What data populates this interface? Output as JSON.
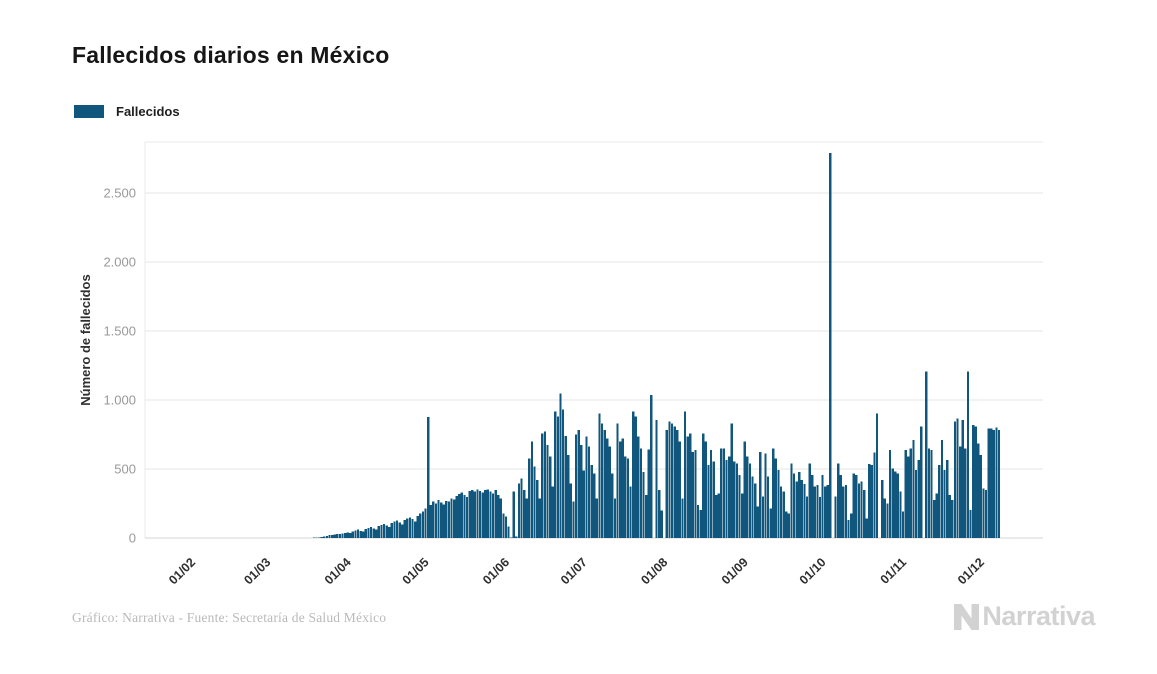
{
  "title": "Fallecidos diarios en México",
  "legend": {
    "label": "Fallecidos",
    "color": "#11577d"
  },
  "footer": {
    "credit": "Gráfico: Narrativa - Fuente: Secretaría de Salud México",
    "logo_text": "Narrativa"
  },
  "chart_data": {
    "type": "bar",
    "title": "Fallecidos diarios en México",
    "xlabel": "",
    "ylabel": "Número de fallecidos",
    "ylim": [
      0,
      2800
    ],
    "grid": true,
    "legend_position": "top-left",
    "bar_color": "#11577d",
    "axis_text_color": "#999999",
    "yticks": [
      {
        "label": "0",
        "value": 0
      },
      {
        "label": "500",
        "value": 500
      },
      {
        "label": "1.000",
        "value": 1000
      },
      {
        "label": "1.500",
        "value": 1500
      },
      {
        "label": "2.000",
        "value": 2000
      },
      {
        "label": "2.500",
        "value": 2500
      }
    ],
    "xticks": [
      {
        "label": "01/02",
        "day": 0
      },
      {
        "label": "01/03",
        "day": 29
      },
      {
        "label": "01/04",
        "day": 60
      },
      {
        "label": "01/05",
        "day": 90
      },
      {
        "label": "01/06",
        "day": 121
      },
      {
        "label": "01/07",
        "day": 151
      },
      {
        "label": "01/08",
        "day": 182
      },
      {
        "label": "01/09",
        "day": 213
      },
      {
        "label": "01/10",
        "day": 243
      },
      {
        "label": "01/11",
        "day": 274
      },
      {
        "label": "01/12",
        "day": 304
      }
    ],
    "series": [
      {
        "name": "Fallecidos",
        "first_point_day_offset": 47,
        "values": [
          2,
          3,
          5,
          8,
          12,
          16,
          20,
          22,
          25,
          28,
          30,
          33,
          36,
          40,
          36,
          48,
          54,
          60,
          52,
          46,
          66,
          72,
          78,
          70,
          62,
          86,
          94,
          102,
          92,
          80,
          110,
          118,
          126,
          112,
          98,
          132,
          140,
          150,
          136,
          120,
          160,
          176,
          193,
          215,
          877,
          239,
          263,
          251,
          275,
          258,
          243,
          269,
          263,
          287,
          278,
          305,
          318,
          330,
          312,
          296,
          341,
          348,
          336,
          353,
          341,
          330,
          348,
          353,
          336,
          324,
          348,
          312,
          287,
          179,
          155,
          82,
          4,
          336,
          10,
          396,
          432,
          348,
          287,
          577,
          698,
          517,
          420,
          287,
          758,
          770,
          674,
          589,
          372,
          915,
          879,
          1048,
          930,
          739,
          600,
          395,
          263,
          750,
          782,
          674,
          490,
          734,
          662,
          529,
          468,
          287,
          903,
          831,
          782,
          722,
          662,
          468,
          287,
          831,
          698,
          722,
          589,
          577,
          372,
          915,
          879,
          737,
          650,
          480,
          310,
          640,
          1036,
          0,
          855,
          348,
          200,
          0,
          782,
          843,
          831,
          807,
          782,
          698,
          287,
          915,
          734,
          758,
          625,
          638,
          239,
          203,
          758,
          698,
          529,
          638,
          553,
          312,
          324,
          650,
          650,
          565,
          589,
          831,
          553,
          541,
          456,
          324,
          698,
          589,
          541,
          444,
          396,
          227,
          625,
          299,
          613,
          444,
          215,
          650,
          577,
          493,
          372,
          336,
          191,
          179,
          541,
          468,
          408,
          480,
          420,
          390,
          299,
          541,
          456,
          372,
          384,
          296,
          456,
          372,
          384,
          2789,
          0,
          299,
          541,
          456,
          372,
          384,
          130,
          179,
          468,
          456,
          396,
          408,
          348,
          143,
          536,
          529,
          620,
          903,
          0,
          420,
          287,
          251,
          638,
          505,
          481,
          468,
          336,
          191,
          638,
          589,
          650,
          710,
          493,
          565,
          807,
          0,
          1205,
          650,
          638,
          275,
          324,
          529,
          710,
          493,
          565,
          312,
          275,
          843,
          867,
          662,
          855,
          650,
          1205,
          203,
          819,
          807,
          686,
          601,
          360,
          348,
          795,
          795,
          782,
          800,
          782
        ]
      }
    ]
  }
}
